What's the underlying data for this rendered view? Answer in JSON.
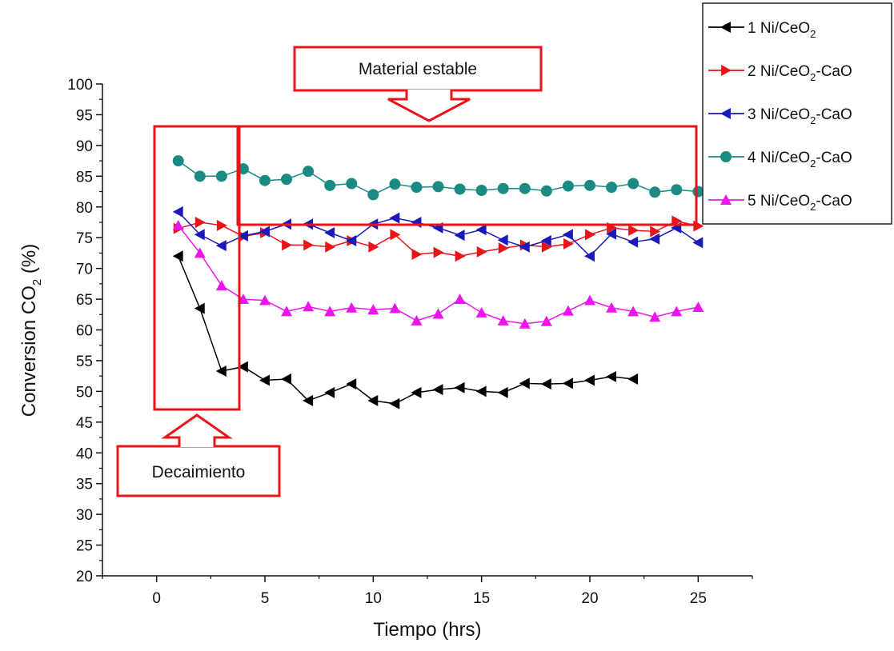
{
  "chart_data": {
    "type": "line",
    "title": "",
    "xlabel": "Tiempo (hrs)",
    "ylabel": "Conversion CO",
    "ylabel_sub": "2",
    "ylabel_suffix": " (%)",
    "xlim": [
      -2.5,
      27.5
    ],
    "ylim": [
      20,
      100
    ],
    "x_ticks": [
      0,
      5,
      10,
      15,
      20,
      25
    ],
    "y_ticks": [
      20,
      25,
      30,
      35,
      40,
      45,
      50,
      55,
      60,
      65,
      70,
      75,
      80,
      85,
      90,
      95,
      100
    ],
    "grid": false,
    "legend_position": "top-right",
    "series": [
      {
        "name": "1 Ni/CeO",
        "name_sub": "2",
        "name_suffix": "",
        "color": "#000000",
        "marker": "triangle-left",
        "x": [
          1,
          2,
          3,
          4,
          5,
          6,
          7,
          8,
          9,
          10,
          11,
          12,
          13,
          14,
          15,
          16,
          17,
          18,
          19,
          20,
          21,
          22
        ],
        "y": [
          72.0,
          63.5,
          53.3,
          54.0,
          51.8,
          52.0,
          48.5,
          49.8,
          51.2,
          48.5,
          48.0,
          49.8,
          50.3,
          50.6,
          50.0,
          49.8,
          51.3,
          51.2,
          51.3,
          51.8,
          52.4,
          52.0
        ]
      },
      {
        "name": "2 Ni/CeO",
        "name_sub": "2",
        "name_suffix": "-CaO",
        "color": "#e8141a",
        "marker": "triangle-right",
        "x": [
          1,
          2,
          3,
          4,
          5,
          6,
          7,
          8,
          9,
          10,
          11,
          12,
          13,
          14,
          15,
          16,
          17,
          18,
          19,
          20,
          21,
          22,
          23,
          24,
          25
        ],
        "y": [
          76.5,
          77.5,
          77.0,
          75.2,
          75.8,
          73.8,
          73.8,
          73.5,
          74.5,
          73.5,
          75.5,
          72.3,
          72.6,
          72.0,
          72.7,
          73.3,
          73.8,
          73.5,
          74.0,
          75.5,
          76.6,
          76.2,
          76.0,
          77.7,
          76.9
        ]
      },
      {
        "name": "3 Ni/CeO",
        "name_sub": "2",
        "name_suffix": "-CaO",
        "color": "#1a1ab8",
        "marker": "triangle-left",
        "x": [
          1,
          2,
          3,
          4,
          5,
          6,
          7,
          8,
          9,
          10,
          11,
          12,
          13,
          14,
          15,
          16,
          17,
          18,
          19,
          20,
          21,
          22,
          23,
          24,
          25
        ],
        "y": [
          79.2,
          75.5,
          73.7,
          75.3,
          76.0,
          77.2,
          77.2,
          75.8,
          74.5,
          77.2,
          78.2,
          77.5,
          76.6,
          75.4,
          76.3,
          74.6,
          73.5,
          74.5,
          75.5,
          72.0,
          75.6,
          74.3,
          74.8,
          76.6,
          74.2
        ]
      },
      {
        "name": "4 Ni/CeO",
        "name_sub": "2",
        "name_suffix": "-CaO",
        "color": "#1a8a82",
        "marker": "circle",
        "x": [
          1,
          2,
          3,
          4,
          5,
          6,
          7,
          8,
          9,
          10,
          11,
          12,
          13,
          14,
          15,
          16,
          17,
          18,
          19,
          20,
          21,
          22,
          23,
          24,
          25
        ],
        "y": [
          87.5,
          85.0,
          85.0,
          86.2,
          84.3,
          84.5,
          85.8,
          83.5,
          83.8,
          82.0,
          83.7,
          83.2,
          83.3,
          82.9,
          82.7,
          83.0,
          83.0,
          82.6,
          83.4,
          83.5,
          83.2,
          83.8,
          82.4,
          82.8,
          82.5
        ]
      },
      {
        "name": "5 Ni/CeO",
        "name_sub": "2",
        "name_suffix": "-CaO",
        "color": "#ee14ee",
        "marker": "triangle-up",
        "x": [
          1,
          2,
          3,
          4,
          5,
          6,
          7,
          8,
          9,
          10,
          11,
          12,
          13,
          14,
          15,
          16,
          17,
          18,
          19,
          20,
          21,
          22,
          23,
          24,
          25
        ],
        "y": [
          77.0,
          72.5,
          67.2,
          65.0,
          64.8,
          63.0,
          63.8,
          63.0,
          63.6,
          63.3,
          63.5,
          61.5,
          62.6,
          65.0,
          62.8,
          61.5,
          61.0,
          61.4,
          63.1,
          64.8,
          63.6,
          63.0,
          62.1,
          63.0,
          63.7
        ]
      }
    ],
    "annotations": [
      {
        "text": "Material estable",
        "arrow": "down"
      },
      {
        "text": "Decaimiento",
        "arrow": "up"
      }
    ]
  }
}
